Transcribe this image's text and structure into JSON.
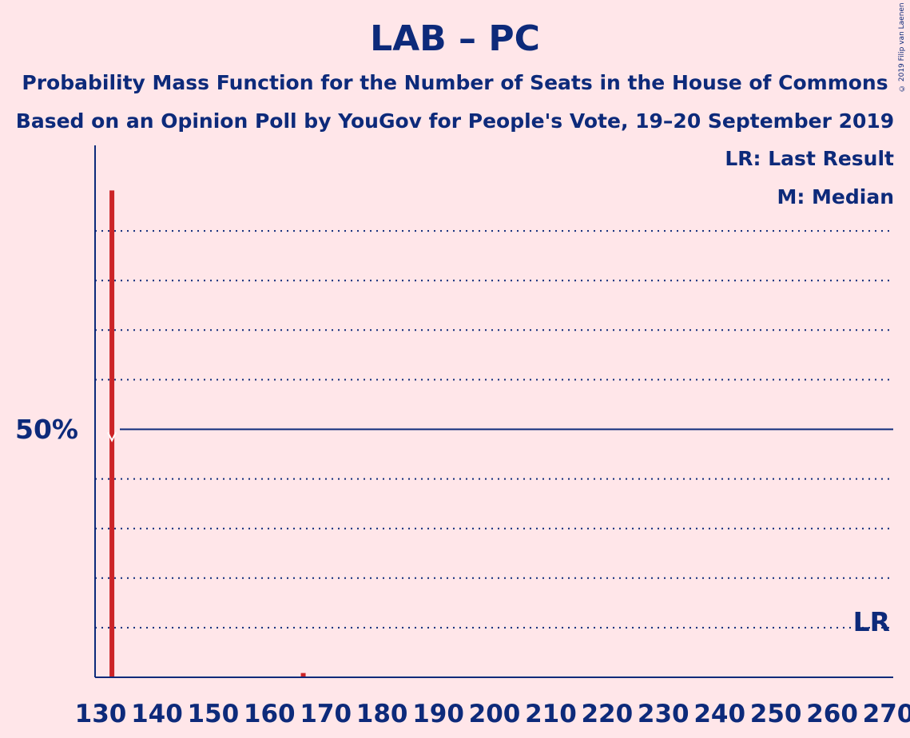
{
  "header": {
    "title": "LAB – PC",
    "subtitle_line1": "Probability Mass Function for the Number of Seats in the House of Commons",
    "subtitle_line2": "Based on an Opinion Poll by YouGov for People's Vote, 19–20 September 2019",
    "copyright": "© 2019 Filip van Laenen"
  },
  "legend": {
    "last_result": "LR: Last Result",
    "median": "M: Median"
  },
  "chart_data": {
    "type": "bar",
    "x_min": 130,
    "x_max": 270,
    "x_ticks": [
      130,
      140,
      150,
      160,
      170,
      180,
      190,
      200,
      210,
      220,
      230,
      240,
      250,
      260,
      270
    ],
    "ylim": [
      0,
      100
    ],
    "y_gridlines": [
      10,
      20,
      30,
      40,
      60,
      70,
      80,
      90
    ],
    "y_reference": 50,
    "y_reference_label": "50%",
    "bars": [
      {
        "seats": 132,
        "probability": 98
      },
      {
        "seats": 166,
        "probability": 0.7
      }
    ],
    "median_seats": 132,
    "median_marker": "M",
    "last_result_seats": 267,
    "last_result_label": "LR",
    "colors": {
      "bar": "#cc2427",
      "axis": "#0d2a7a",
      "background": "#ffe6e9"
    }
  }
}
